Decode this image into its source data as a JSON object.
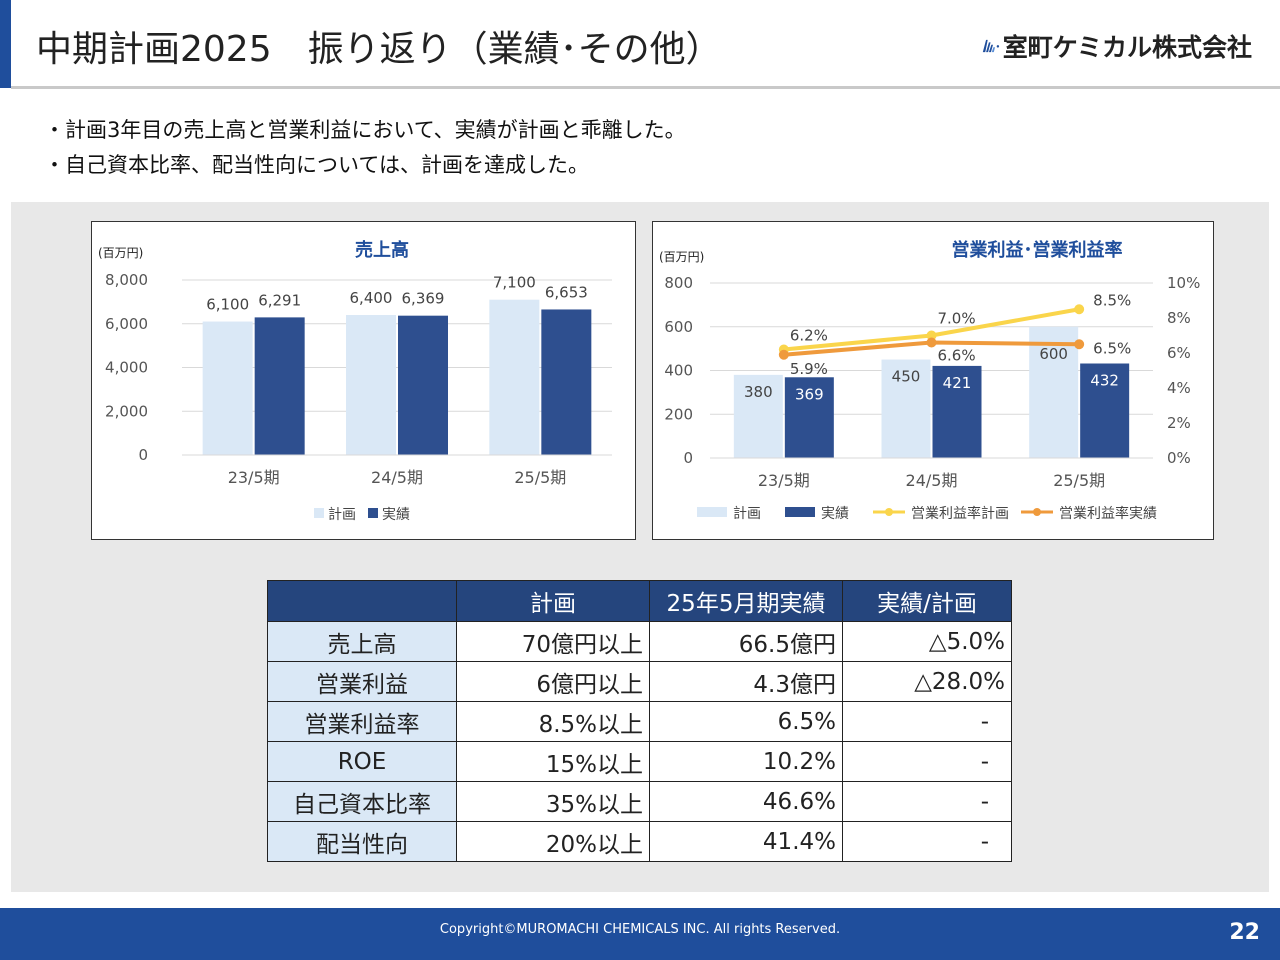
{
  "header": {
    "title": "中期計画2025　振り返り（業績･その他）",
    "logo_text": "室町ケミカル株式会社",
    "accent_color": "#1f4e9c"
  },
  "bullets": [
    "・計画3年目の売上高と営業利益において、実績が計画と乖離した。",
    "・自己資本比率、配当性向については、計画を達成した。"
  ],
  "chart_data": [
    {
      "type": "bar",
      "title": "売上高",
      "unit": "(百万円)",
      "categories": [
        "23/5期",
        "24/5期",
        "25/5期"
      ],
      "series": [
        {
          "name": "計画",
          "values": [
            6100,
            6400,
            7100
          ],
          "color": "#dae8f6"
        },
        {
          "name": "実績",
          "values": [
            6291,
            6369,
            6653
          ],
          "color": "#2e4f8f"
        }
      ],
      "value_labels": [
        [
          "6,100",
          "6,400",
          "7,100"
        ],
        [
          "6,291",
          "6,369",
          "6,653"
        ]
      ],
      "ylim": [
        0,
        8000
      ],
      "yticks": [
        "0",
        "2,000",
        "4,000",
        "6,000",
        "8,000"
      ],
      "grid": true,
      "legend": "bottom"
    },
    {
      "type": "bar",
      "title": "営業利益･営業利益率",
      "unit": "(百万円)",
      "categories": [
        "23/5期",
        "24/5期",
        "25/5期"
      ],
      "series": [
        {
          "name": "計画",
          "values": [
            380,
            450,
            600
          ],
          "color": "#dae8f6"
        },
        {
          "name": "実績",
          "values": [
            369,
            421,
            432
          ],
          "color": "#2e4f8f"
        }
      ],
      "value_labels": [
        [
          "380",
          "450",
          "600"
        ],
        [
          "369",
          "421",
          "432"
        ]
      ],
      "line_series": [
        {
          "name": "営業利益率計画",
          "values": [
            6.2,
            7.0,
            8.5
          ],
          "labels": [
            "6.2%",
            "7.0%",
            "8.5%"
          ],
          "color": "#fad54b"
        },
        {
          "name": "営業利益率実績",
          "values": [
            5.9,
            6.6,
            6.5
          ],
          "labels": [
            "5.9%",
            "6.6%",
            "6.5%"
          ],
          "color": "#ef9a3c"
        }
      ],
      "ylim": [
        0,
        800
      ],
      "yticks": [
        "0",
        "200",
        "400",
        "600",
        "800"
      ],
      "y2lim": [
        0,
        10
      ],
      "y2ticks": [
        "0%",
        "2%",
        "4%",
        "6%",
        "8%",
        "10%"
      ],
      "grid": true,
      "legend": "bottom"
    }
  ],
  "table": {
    "headers": [
      "",
      "計画",
      "25年5月期実績",
      "実績/計画"
    ],
    "rows": [
      {
        "label": "売上高",
        "plan": "70億円以上",
        "actual": "66.5億円",
        "ratio": "△5.0%"
      },
      {
        "label": "営業利益",
        "plan": "6億円以上",
        "actual": "4.3億円",
        "ratio": "△28.0%"
      },
      {
        "label": "営業利益率",
        "plan": "8.5%以上",
        "actual": "6.5%",
        "ratio": "-"
      },
      {
        "label": "ROE",
        "plan": "15%以上",
        "actual": "10.2%",
        "ratio": "-"
      },
      {
        "label": "自己資本比率",
        "plan": "35%以上",
        "actual": "46.6%",
        "ratio": "-"
      },
      {
        "label": "配当性向",
        "plan": "20%以上",
        "actual": "41.4%",
        "ratio": "-"
      }
    ]
  },
  "footer": {
    "copyright": "Copyright©MUROMACHI CHEMICALS INC. All rights Reserved.",
    "page_number": "22"
  }
}
